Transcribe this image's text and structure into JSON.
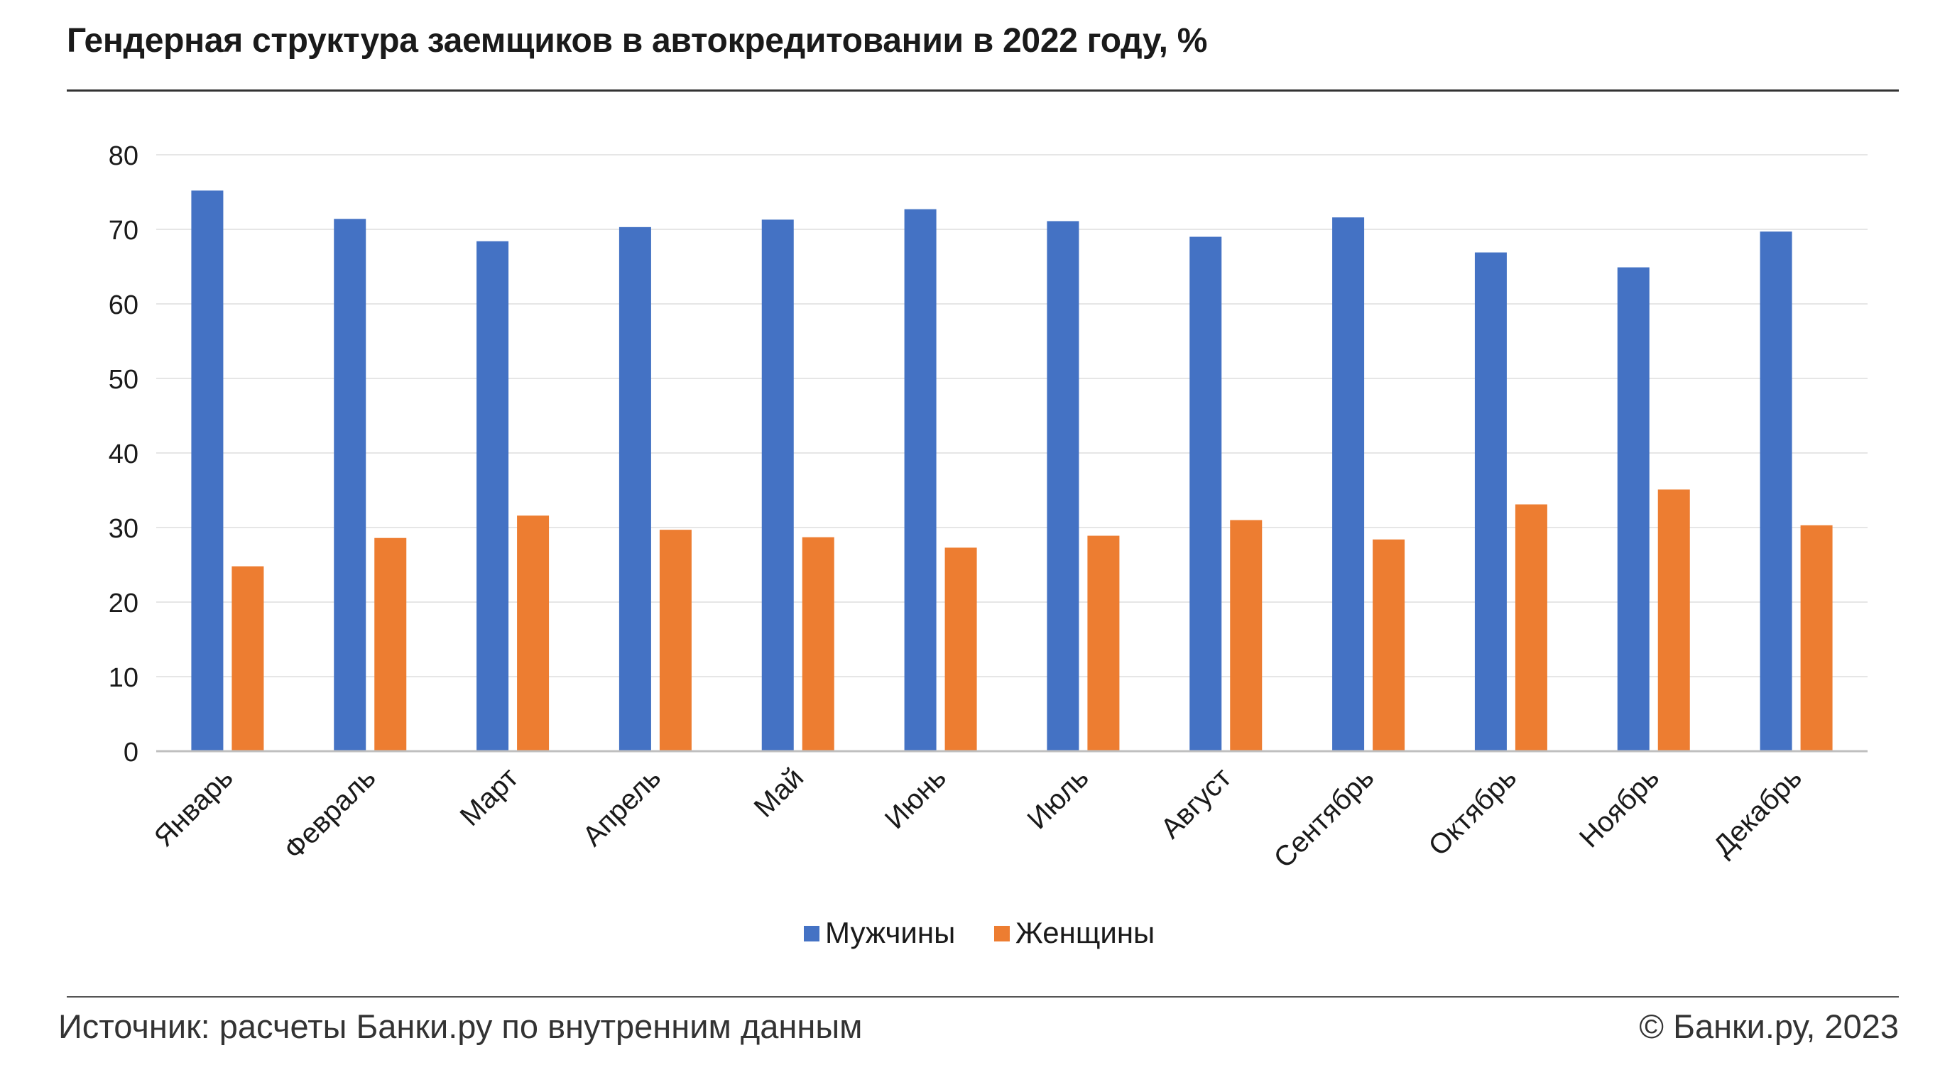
{
  "header": {
    "title": "Гендерная структура заемщиков в автокредитовании в 2022 году, %"
  },
  "footer": {
    "source": "Источник: расчеты Банки.ру по внутренним данным",
    "copyright": "© Банки.ру, 2023"
  },
  "chart_data": {
    "type": "bar",
    "title": "Гендерная структура заемщиков в автокредитовании в 2022 году, %",
    "xlabel": "",
    "ylabel": "",
    "ylim": [
      0,
      80
    ],
    "yticks": [
      "0",
      "10",
      "20",
      "30",
      "40",
      "50",
      "60",
      "70",
      "80"
    ],
    "grid": true,
    "legend_position": "bottom",
    "categories": [
      "Январь",
      "Февраль",
      "Март",
      "Апрель",
      "Май",
      "Июнь",
      "Июль",
      "Август",
      "Сентябрь",
      "Октябрь",
      "Ноябрь",
      "Декабрь"
    ],
    "series": [
      {
        "name": "Мужчины",
        "color": "#4472C4",
        "values": [
          75.2,
          71.4,
          68.4,
          70.3,
          71.3,
          72.7,
          71.1,
          69.0,
          71.6,
          66.9,
          64.9,
          69.7
        ]
      },
      {
        "name": "Женщины",
        "color": "#ED7D31",
        "values": [
          24.8,
          28.6,
          31.6,
          29.7,
          28.7,
          27.3,
          28.9,
          31.0,
          28.4,
          33.1,
          35.1,
          30.3
        ]
      }
    ]
  }
}
